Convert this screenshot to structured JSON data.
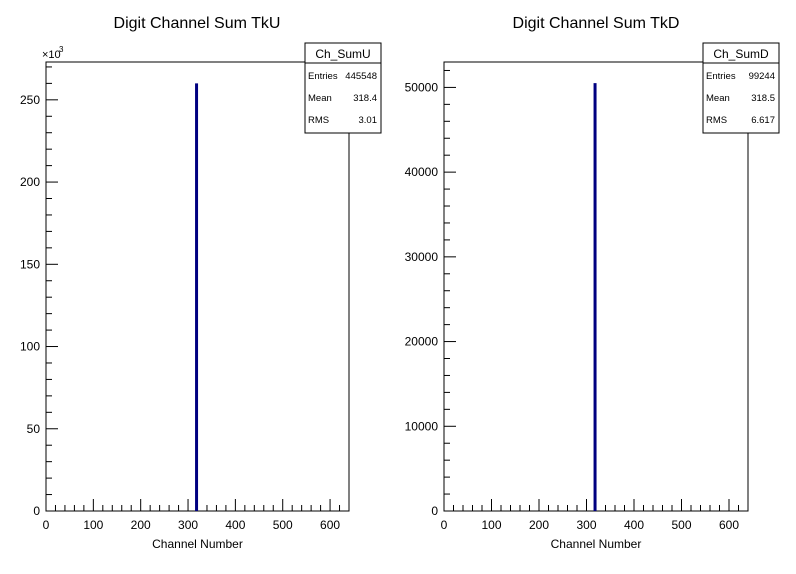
{
  "chart_data": [
    {
      "type": "bar",
      "title": "Digit Channel Sum TkU",
      "xlabel": "Channel Number",
      "ylabel": "",
      "xlim": [
        0,
        640
      ],
      "ylim": [
        0,
        273000
      ],
      "x_ticks": [
        0,
        100,
        200,
        300,
        400,
        500,
        600
      ],
      "y_ticks": [
        0,
        50,
        100,
        150,
        200,
        250
      ],
      "y_multiplier": "×10",
      "y_exponent": "3",
      "series": [
        {
          "x": [
            318
          ],
          "values": [
            260000
          ]
        }
      ],
      "stats": {
        "name": "Ch_SumU",
        "rows": [
          {
            "label": "Entries",
            "value": "445548"
          },
          {
            "label": "Mean",
            "value": "318.4"
          },
          {
            "label": "RMS",
            "value": "3.01"
          }
        ]
      }
    },
    {
      "type": "bar",
      "title": "Digit Channel Sum TkD",
      "xlabel": "Channel Number",
      "ylabel": "",
      "xlim": [
        0,
        640
      ],
      "ylim": [
        0,
        53000
      ],
      "x_ticks": [
        0,
        100,
        200,
        300,
        400,
        500,
        600
      ],
      "y_ticks": [
        0,
        10000,
        20000,
        30000,
        40000,
        50000
      ],
      "y_multiplier": "",
      "y_exponent": "",
      "series": [
        {
          "x": [
            318
          ],
          "values": [
            50500
          ]
        }
      ],
      "stats": {
        "name": "Ch_SumD",
        "rows": [
          {
            "label": "Entries",
            "value": "99244"
          },
          {
            "label": "Mean",
            "value": "318.5"
          },
          {
            "label": "RMS",
            "value": "6.617"
          }
        ]
      }
    }
  ],
  "colors": {
    "histogram_line": "#000080",
    "axes": "#000000",
    "background": "#ffffff"
  }
}
